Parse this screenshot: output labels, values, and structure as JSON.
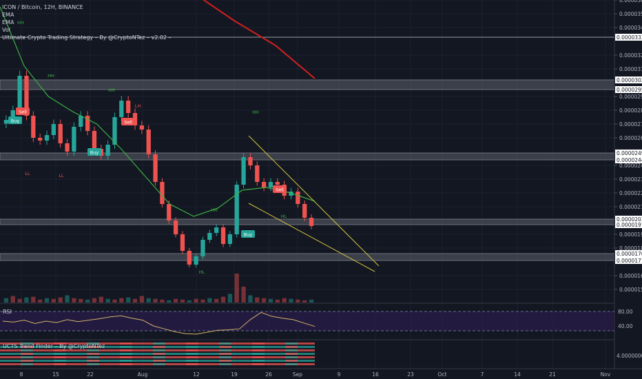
{
  "header": {
    "symbol_line": "ICON / Bitcoin, 12H, BINANCE",
    "indicators": [
      "EMA",
      "EMA",
      "Vol",
      "Ultimate Crypto Trading Strategy – By @CryptoNTez – v2.02 –"
    ],
    "ema2_tag": "HH"
  },
  "rsi_panel": {
    "label": "RSI",
    "upper": "80.00",
    "lower": "40.00"
  },
  "trend_panel": {
    "label": "UCTS Trend Finder – By @CryptoNTez",
    "value": "4.00000000"
  },
  "colors": {
    "bg": "#131722",
    "up": "#26a69a",
    "down": "#ef5350",
    "ema_fast": "#3cb043",
    "ema_slow": "#d02020",
    "wedge": "#d4c440",
    "rsi_band": "#2a1e4a",
    "rsi_line": "#d4b26a"
  },
  "chart_data": {
    "type": "candlestick",
    "title": "ICON / Bitcoin, 12H, BINANCE",
    "x_ticks": [
      "8",
      "15",
      "22",
      "Aug",
      "12",
      "19",
      "26",
      "Sep",
      "9",
      "16",
      "23",
      "Oct",
      "7",
      "14",
      "21",
      "Nov"
    ],
    "y_ticks": [
      "0.00003600",
      "0.00003500",
      "0.00003400",
      "0.00003200",
      "0.00003100",
      "0.00002900",
      "0.00002800",
      "0.00002700",
      "0.00002600",
      "0.00002400",
      "0.00002300",
      "0.00002200",
      "0.00002100",
      "0.00001900",
      "0.00001800",
      "0.00001600",
      "0.00001500"
    ],
    "ylim": [
      1.44e-05,
      3.6e-05
    ],
    "horizontal_levels": [
      {
        "label": "0.00003330",
        "value": 3.33e-05
      },
      {
        "label": "0.00003020",
        "value": 3.02e-05
      },
      {
        "label": "0.00002950",
        "value": 2.95e-05
      },
      {
        "label": "0.00002490",
        "value": 2.49e-05
      },
      {
        "label": "0.00002440",
        "value": 2.44e-05
      },
      {
        "label": "0.00002010",
        "value": 2.01e-05
      },
      {
        "label": "0.00001970",
        "value": 1.97e-05
      },
      {
        "label": "0.00001760",
        "value": 1.76e-05
      },
      {
        "label": "0.00001710",
        "value": 1.71e-05
      }
    ],
    "support_resistance_zones": [
      [
        2.95e-05,
        3.02e-05
      ],
      [
        2.44e-05,
        2.49e-05
      ],
      [
        1.97e-05,
        2.01e-05
      ],
      [
        1.71e-05,
        1.76e-05
      ]
    ],
    "candles_close_approx": [
      2.73e-05,
      2.8e-05,
      3.05e-05,
      2.76e-05,
      2.6e-05,
      2.58e-05,
      2.62e-05,
      2.7e-05,
      2.56e-05,
      2.5e-05,
      2.68e-05,
      2.76e-05,
      2.65e-05,
      2.52e-05,
      2.47e-05,
      2.55e-05,
      2.75e-05,
      2.87e-05,
      2.78e-05,
      2.69e-05,
      2.66e-05,
      2.48e-05,
      2.28e-05,
      2.12e-05,
      2e-05,
      1.9e-05,
      1.78e-05,
      1.68e-05,
      1.74e-05,
      1.86e-05,
      1.91e-05,
      1.95e-05,
      1.83e-05,
      1.9e-05,
      2.26e-05,
      2.46e-05,
      2.4e-05,
      2.28e-05,
      2.24e-05,
      2.28e-05,
      2.26e-05,
      2.18e-05,
      2.21e-05,
      2.12e-05,
      2.02e-05,
      1.96e-05
    ],
    "signals": [
      "Buy",
      "Sell",
      "Buy",
      "Sell",
      "Buy",
      "Sell"
    ],
    "swing_markers": [
      "HH",
      "HH",
      "HH",
      "HH",
      "HL",
      "HL",
      "LH",
      "LL",
      "LL"
    ],
    "series": [
      {
        "name": "EMA",
        "approx": [
          3.55e-05,
          3.12e-05,
          2.9e-05,
          2.79e-05,
          2.7e-05,
          2.52e-05,
          2.32e-05,
          2.12e-05,
          2.03e-05,
          2.09e-05,
          2.22e-05,
          2.24e-05,
          2.2e-05,
          2.14e-05
        ]
      },
      {
        "name": "EMA",
        "approx": [
          3.63e-05,
          3.45e-05,
          3.27e-05,
          3.03e-05
        ]
      },
      {
        "name": "Vol"
      }
    ],
    "wedge": {
      "upper": [
        2.63e-05,
        1.79e-05
      ],
      "lower": [
        2.14e-05,
        1.69e-05
      ]
    },
    "rsi": {
      "ylim": [
        0,
        100
      ],
      "band": [
        40,
        80
      ],
      "approx": [
        60,
        58,
        62,
        55,
        60,
        57,
        63,
        59,
        62,
        65,
        69,
        71,
        66,
        62,
        50,
        44,
        38,
        34,
        33,
        37,
        41,
        42,
        44,
        63,
        78,
        70,
        66,
        63,
        56,
        49
      ]
    }
  }
}
